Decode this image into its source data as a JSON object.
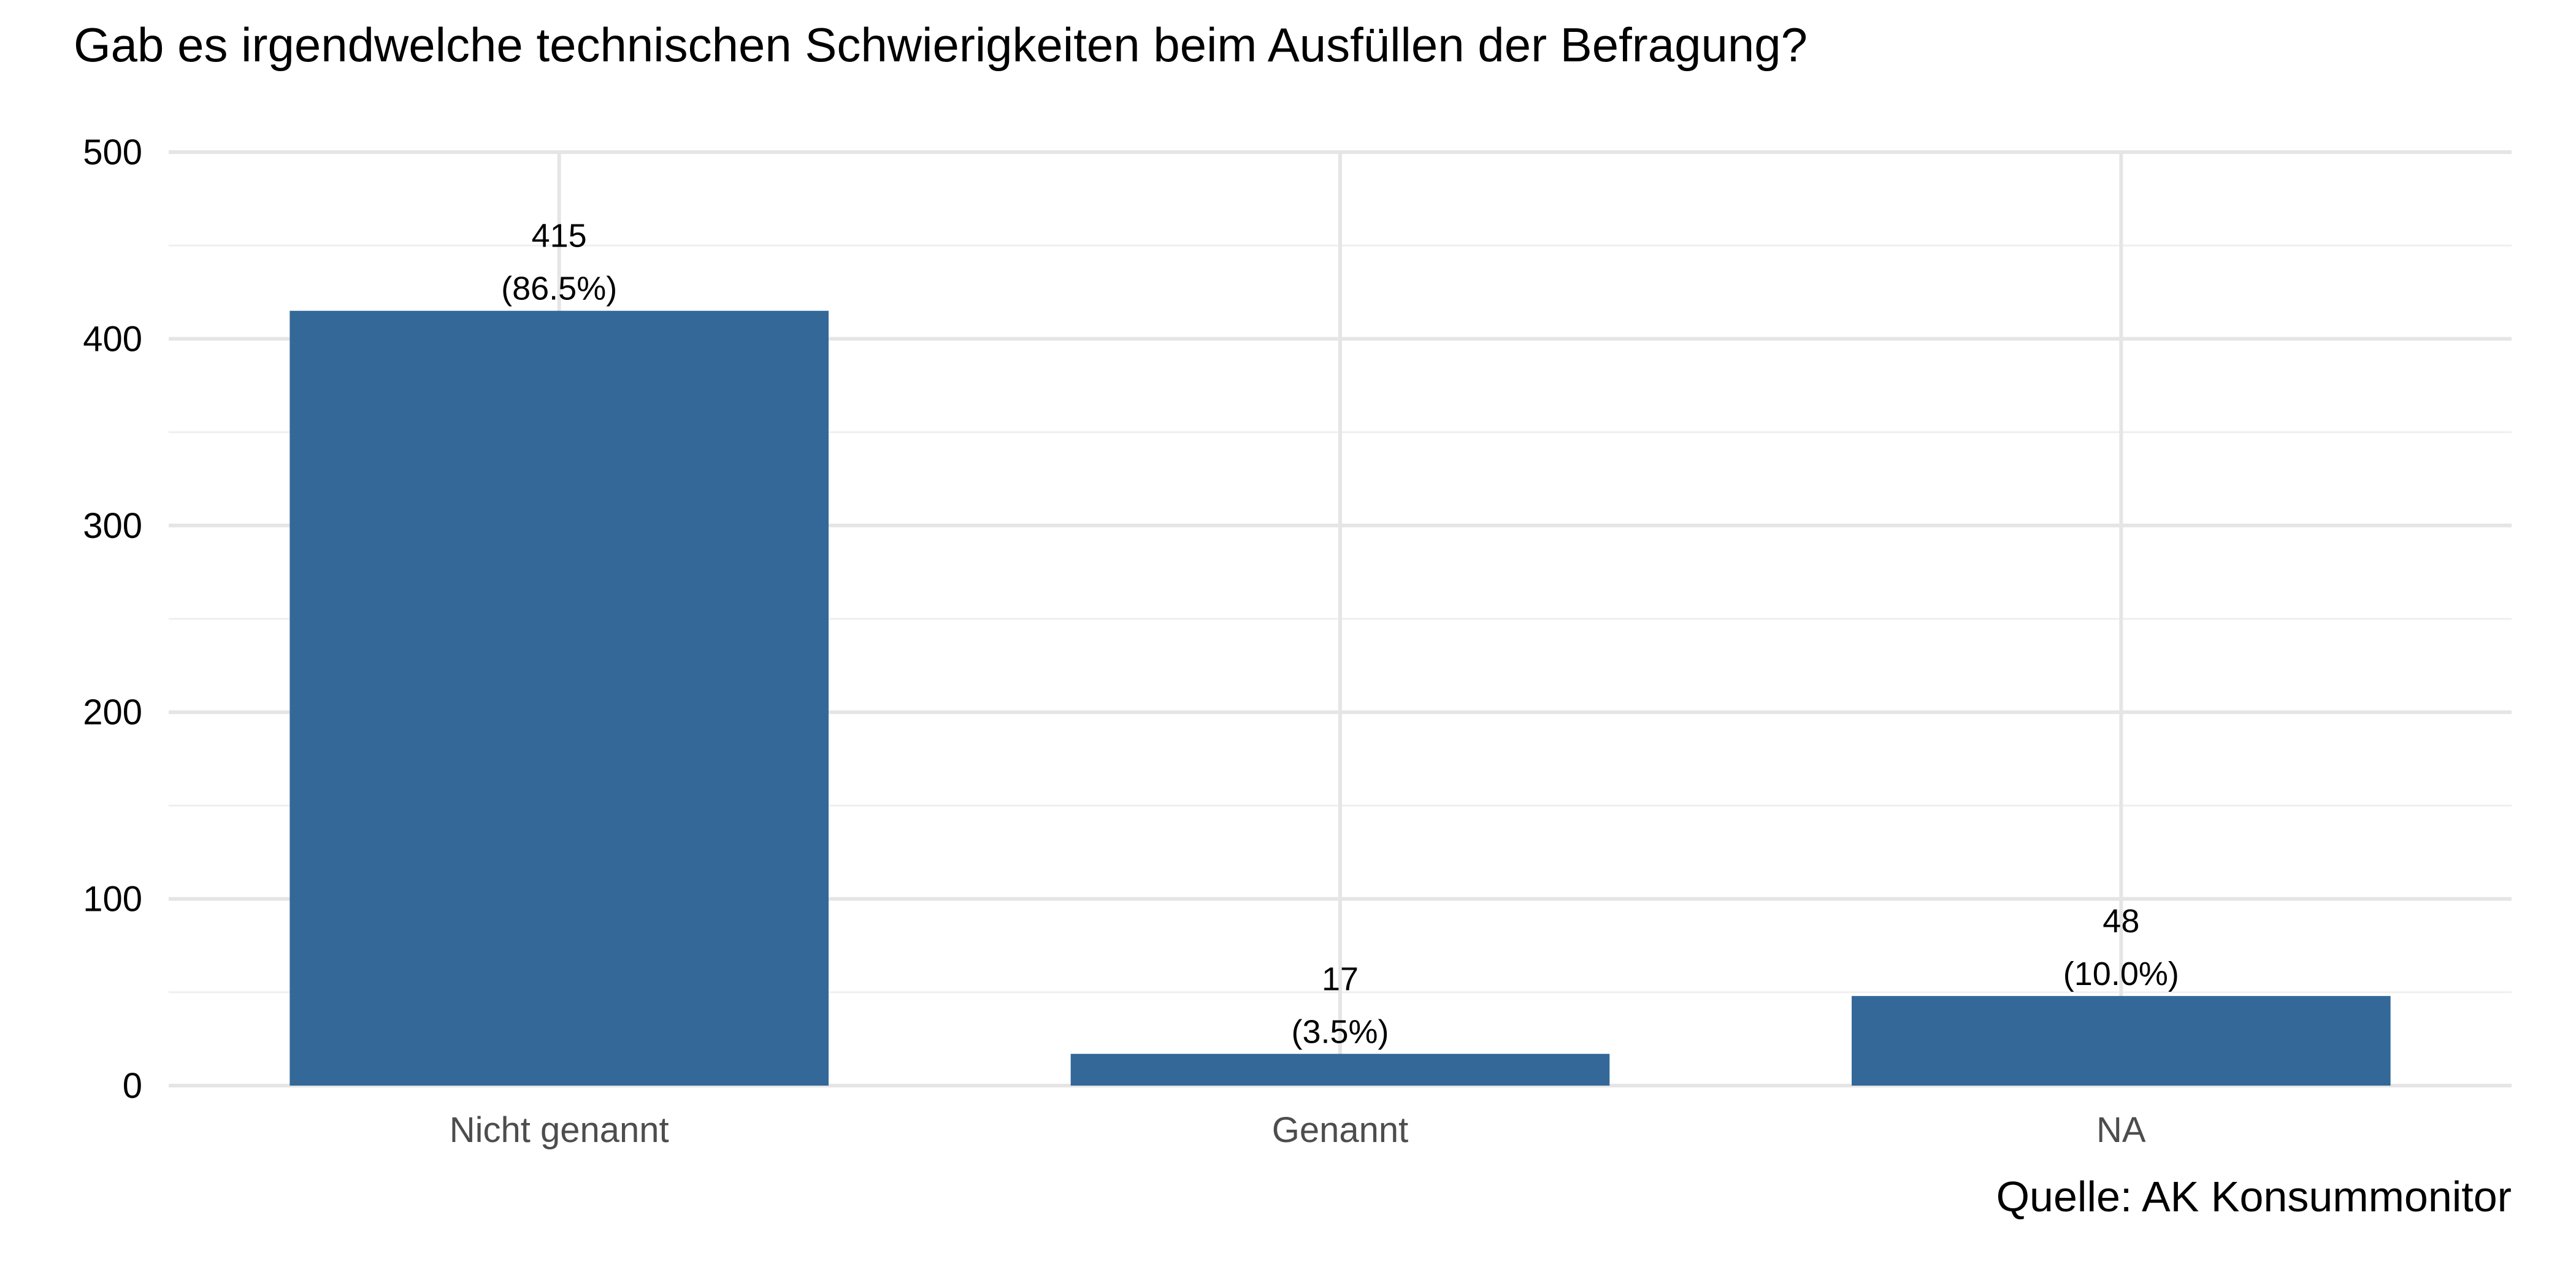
{
  "chart_data": {
    "type": "bar",
    "title": "Gab es irgendwelche technischen Schwierigkeiten beim Ausfüllen der Befragung?",
    "caption": "Quelle: AK Konsummonitor",
    "categories": [
      "Nicht genannt",
      "Genannt",
      "NA"
    ],
    "values": [
      415,
      17,
      48
    ],
    "value_labels": [
      "415",
      "17",
      "48"
    ],
    "percent_labels": [
      "(86.5%)",
      "(3.5%)",
      "(10.0%)"
    ],
    "ylim": [
      0,
      500
    ],
    "yticks": [
      0,
      100,
      200,
      300,
      400,
      500
    ],
    "ytick_labels": [
      "0",
      "100",
      "200",
      "300",
      "400",
      "500"
    ],
    "grid": true,
    "bar_color": "#336899"
  }
}
